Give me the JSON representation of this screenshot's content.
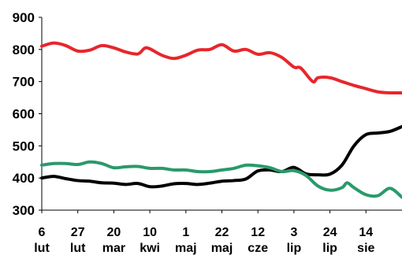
{
  "chart_data": {
    "type": "line",
    "title": "",
    "xlabel": "",
    "ylabel": "",
    "ylim": [
      300,
      900
    ],
    "yticks": [
      300,
      400,
      500,
      600,
      700,
      800,
      900
    ],
    "x_ticks": [
      {
        "x": 0,
        "line1": "6",
        "line2": "lut"
      },
      {
        "x": 21,
        "line1": "27",
        "line2": "lut"
      },
      {
        "x": 42,
        "line1": "20",
        "line2": "mar"
      },
      {
        "x": 63,
        "line1": "10",
        "line2": "kwi"
      },
      {
        "x": 84,
        "line1": "1",
        "line2": "maj"
      },
      {
        "x": 105,
        "line1": "22",
        "line2": "maj"
      },
      {
        "x": 126,
        "line1": "12",
        "line2": "cze"
      },
      {
        "x": 147,
        "line1": "3",
        "line2": "lip"
      },
      {
        "x": 168,
        "line1": "24",
        "line2": "lip"
      },
      {
        "x": 189,
        "line1": "14",
        "line2": "sie"
      }
    ],
    "xlim": [
      0,
      210
    ],
    "grid": false,
    "legend": "none",
    "series": [
      {
        "color": "#e8262b",
        "points": [
          [
            0,
            810
          ],
          [
            7,
            820
          ],
          [
            14,
            812
          ],
          [
            21,
            795
          ],
          [
            28,
            798
          ],
          [
            35,
            812
          ],
          [
            42,
            805
          ],
          [
            49,
            792
          ],
          [
            56,
            786
          ],
          [
            60,
            804
          ],
          [
            63,
            802
          ],
          [
            70,
            782
          ],
          [
            77,
            772
          ],
          [
            84,
            782
          ],
          [
            91,
            798
          ],
          [
            98,
            800
          ],
          [
            105,
            815
          ],
          [
            112,
            795
          ],
          [
            119,
            800
          ],
          [
            126,
            785
          ],
          [
            133,
            790
          ],
          [
            140,
            775
          ],
          [
            147,
            745
          ],
          [
            151,
            742
          ],
          [
            158,
            700
          ],
          [
            161,
            712
          ],
          [
            168,
            712
          ],
          [
            175,
            700
          ],
          [
            182,
            688
          ],
          [
            189,
            678
          ],
          [
            196,
            668
          ],
          [
            203,
            665
          ],
          [
            210,
            665
          ]
        ]
      },
      {
        "color": "#000000",
        "points": [
          [
            0,
            400
          ],
          [
            7,
            405
          ],
          [
            14,
            398
          ],
          [
            21,
            392
          ],
          [
            28,
            390
          ],
          [
            35,
            385
          ],
          [
            42,
            384
          ],
          [
            49,
            380
          ],
          [
            56,
            383
          ],
          [
            63,
            373
          ],
          [
            70,
            375
          ],
          [
            77,
            382
          ],
          [
            84,
            383
          ],
          [
            91,
            380
          ],
          [
            98,
            384
          ],
          [
            105,
            390
          ],
          [
            112,
            392
          ],
          [
            119,
            397
          ],
          [
            126,
            422
          ],
          [
            133,
            425
          ],
          [
            140,
            420
          ],
          [
            147,
            433
          ],
          [
            154,
            413
          ],
          [
            161,
            410
          ],
          [
            168,
            412
          ],
          [
            175,
            440
          ],
          [
            182,
            500
          ],
          [
            189,
            535
          ],
          [
            196,
            540
          ],
          [
            203,
            545
          ],
          [
            210,
            560
          ]
        ]
      },
      {
        "color": "#2a9a6a",
        "points": [
          [
            0,
            440
          ],
          [
            7,
            445
          ],
          [
            14,
            445
          ],
          [
            21,
            442
          ],
          [
            28,
            450
          ],
          [
            35,
            445
          ],
          [
            42,
            432
          ],
          [
            49,
            435
          ],
          [
            56,
            436
          ],
          [
            63,
            430
          ],
          [
            70,
            430
          ],
          [
            77,
            425
          ],
          [
            84,
            425
          ],
          [
            91,
            420
          ],
          [
            98,
            420
          ],
          [
            105,
            425
          ],
          [
            112,
            430
          ],
          [
            119,
            440
          ],
          [
            126,
            438
          ],
          [
            133,
            432
          ],
          [
            140,
            420
          ],
          [
            147,
            423
          ],
          [
            154,
            408
          ],
          [
            161,
            375
          ],
          [
            168,
            362
          ],
          [
            175,
            370
          ],
          [
            178,
            385
          ],
          [
            182,
            370
          ],
          [
            189,
            348
          ],
          [
            196,
            345
          ],
          [
            203,
            368
          ],
          [
            210,
            340
          ]
        ]
      }
    ]
  }
}
